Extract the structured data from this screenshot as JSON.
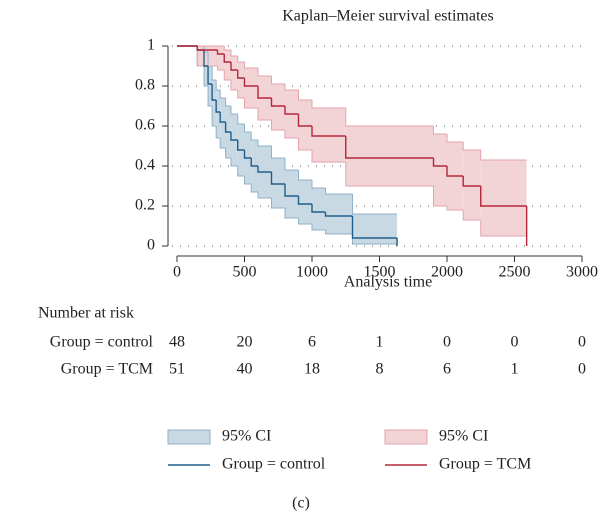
{
  "chart_data": {
    "type": "step",
    "title": "Kaplan–Meier survival estimates",
    "x_label": "Analysis time",
    "xlim": [
      0,
      3000
    ],
    "xticks": [
      0,
      500,
      1000,
      1500,
      2000,
      2500,
      3000
    ],
    "ylim": [
      0,
      1
    ],
    "yticks": [
      0,
      0.2,
      0.4,
      0.6,
      0.8,
      1
    ],
    "grid": true,
    "series": [
      {
        "name": "Group = control",
        "color": "#1f5f8b",
        "ci_name": "95% CI",
        "ci_color": "#c8d9e4",
        "ci_edge": "#8fb1c9",
        "x": [
          0,
          150,
          200,
          230,
          260,
          290,
          320,
          360,
          400,
          450,
          500,
          550,
          600,
          700,
          800,
          900,
          1000,
          1100,
          1300,
          1630
        ],
        "values": [
          1,
          0.98,
          0.9,
          0.81,
          0.73,
          0.67,
          0.62,
          0.57,
          0.53,
          0.48,
          0.44,
          0.4,
          0.37,
          0.31,
          0.25,
          0.21,
          0.17,
          0.15,
          0.04,
          0
        ],
        "lower": [
          1,
          0.9,
          0.8,
          0.7,
          0.6,
          0.54,
          0.49,
          0.44,
          0.4,
          0.35,
          0.31,
          0.27,
          0.24,
          0.19,
          0.14,
          0.11,
          0.08,
          0.06,
          0.01,
          null
        ],
        "upper": [
          1,
          1,
          0.97,
          0.9,
          0.83,
          0.78,
          0.74,
          0.7,
          0.66,
          0.61,
          0.57,
          0.53,
          0.5,
          0.44,
          0.38,
          0.33,
          0.29,
          0.26,
          0.16,
          null
        ]
      },
      {
        "name": "Group = TCM",
        "color": "#b5263a",
        "ci_name": "95% CI",
        "ci_color": "#f2d4d7",
        "ci_edge": "#e2a3ab",
        "x": [
          0,
          150,
          300,
          350,
          400,
          450,
          500,
          600,
          700,
          800,
          900,
          1000,
          1250,
          1900,
          2000,
          2120,
          2250,
          2590
        ],
        "values": [
          1,
          0.98,
          0.96,
          0.92,
          0.88,
          0.84,
          0.8,
          0.74,
          0.7,
          0.66,
          0.6,
          0.55,
          0.44,
          0.4,
          0.35,
          0.3,
          0.2,
          0
        ],
        "lower": [
          1,
          0.9,
          0.88,
          0.83,
          0.78,
          0.74,
          0.69,
          0.63,
          0.58,
          0.54,
          0.48,
          0.42,
          0.3,
          0.2,
          0.18,
          0.13,
          0.05,
          null
        ],
        "upper": [
          1,
          1,
          1,
          0.98,
          0.95,
          0.92,
          0.89,
          0.85,
          0.81,
          0.78,
          0.73,
          0.69,
          0.6,
          0.56,
          0.52,
          0.48,
          0.43,
          null
        ]
      }
    ],
    "risk_table": {
      "title": "Number at risk",
      "rows": [
        {
          "label": "Group = control",
          "counts": [
            48,
            20,
            6,
            1,
            0,
            0,
            0
          ]
        },
        {
          "label": "Group = TCM",
          "counts": [
            51,
            40,
            18,
            8,
            6,
            1,
            0
          ]
        }
      ]
    },
    "caption": "(c)"
  }
}
